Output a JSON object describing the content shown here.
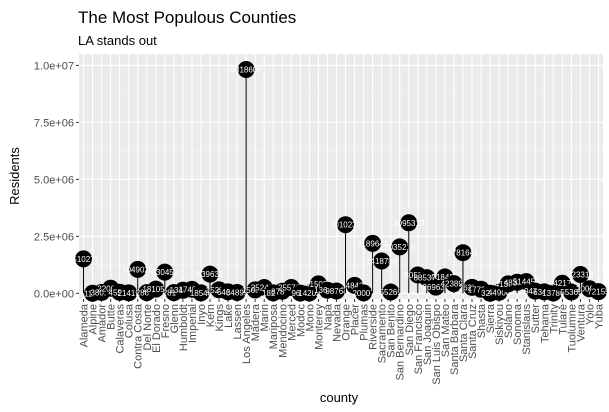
{
  "chart_data": {
    "type": "scatter",
    "style": "lollipop",
    "title": "The Most Populous Counties",
    "subtitle": "LA stands out",
    "xlabel": "county",
    "ylabel": "Residents",
    "ylim": [
      -250000,
      10500000
    ],
    "yticks": [
      0,
      2500000,
      5000000,
      7500000,
      10000000
    ],
    "ytick_labels": [
      "0.0e+00",
      "2.5e+06",
      "5.0e+06",
      "7.5e+06",
      "1.0e+07"
    ],
    "grid": true,
    "panel_color": "#ebebeb",
    "point_color": "#000000",
    "categories": [
      "Alameda",
      "Alpine",
      "Amador",
      "Butte",
      "Calaveras",
      "Colusa",
      "Contra Costa",
      "Del Norte",
      "El Dorado",
      "Fresno",
      "Glenn",
      "Humboldt",
      "Imperial",
      "Inyo",
      "Kern",
      "Kings",
      "Lake",
      "Lassen",
      "Los Angeles",
      "Madera",
      "Marin",
      "Mariposa",
      "Mendocino",
      "Merced",
      "Modoc",
      "Mono",
      "Monterey",
      "Napa",
      "Nevada",
      "Orange",
      "Placer",
      "Plumas",
      "Riverside",
      "Sacramento",
      "San Benito",
      "San Bernardino",
      "San Diego",
      "San Francisco",
      "San Joaquin",
      "San Luis Obispo",
      "San Mateo",
      "Santa Barbara",
      "Santa Clara",
      "Santa Cruz",
      "Shasta",
      "Sierra",
      "Siskiyou",
      "Solano",
      "Sonoma",
      "Stanislaus",
      "Sutter",
      "Tehama",
      "Trinity",
      "Tulare",
      "Tuolumne",
      "Ventura",
      "Yolo",
      "Yuba"
    ],
    "values": [
      1510271,
      1175,
      38091,
      220000,
      45578,
      21419,
      1049025,
      28610,
      181058,
      930450,
      28122,
      134623,
      174528,
      18546,
      839631,
      152982,
      64665,
      34895,
      9818605,
      150865,
      252409,
      18251,
      87841,
      255793,
      9686,
      14202,
      415057,
      136484,
      98764,
      3010232,
      348432,
      20007,
      2189641,
      1418788,
      55269,
      2035210,
      3095313,
      805235,
      685306,
      269637,
      718451,
      423895,
      1781642,
      262382,
      177223,
      3240,
      44900,
      413344,
      483878,
      514453,
      94737,
      63463,
      13786,
      442179,
      55365,
      823318,
      200849,
      72155
    ],
    "point_labels": [
      "1510271",
      "1175",
      "38091",
      "220000",
      "45578",
      "21419",
      "1049025",
      "28610",
      "181058",
      "930450",
      "28122",
      "134623",
      "174528",
      "18546",
      "839631",
      "152982",
      "64665",
      "34895",
      "9818605",
      "150865",
      "252409",
      "18251",
      "87841",
      "255793",
      "9686",
      "14202",
      "415057",
      "136484",
      "98764",
      "3010232",
      "348432",
      "20007",
      "2189641",
      "1418788",
      "55269",
      "2035210",
      "3095313",
      "805235",
      "685306",
      "269637",
      "718451",
      "423895",
      "1781642",
      "262382",
      "177223",
      "3240",
      "44900",
      "413344",
      "483878",
      "514453",
      "94737",
      "63463",
      "13786",
      "442179",
      "55365",
      "823318",
      "200849",
      "72155"
    ]
  }
}
